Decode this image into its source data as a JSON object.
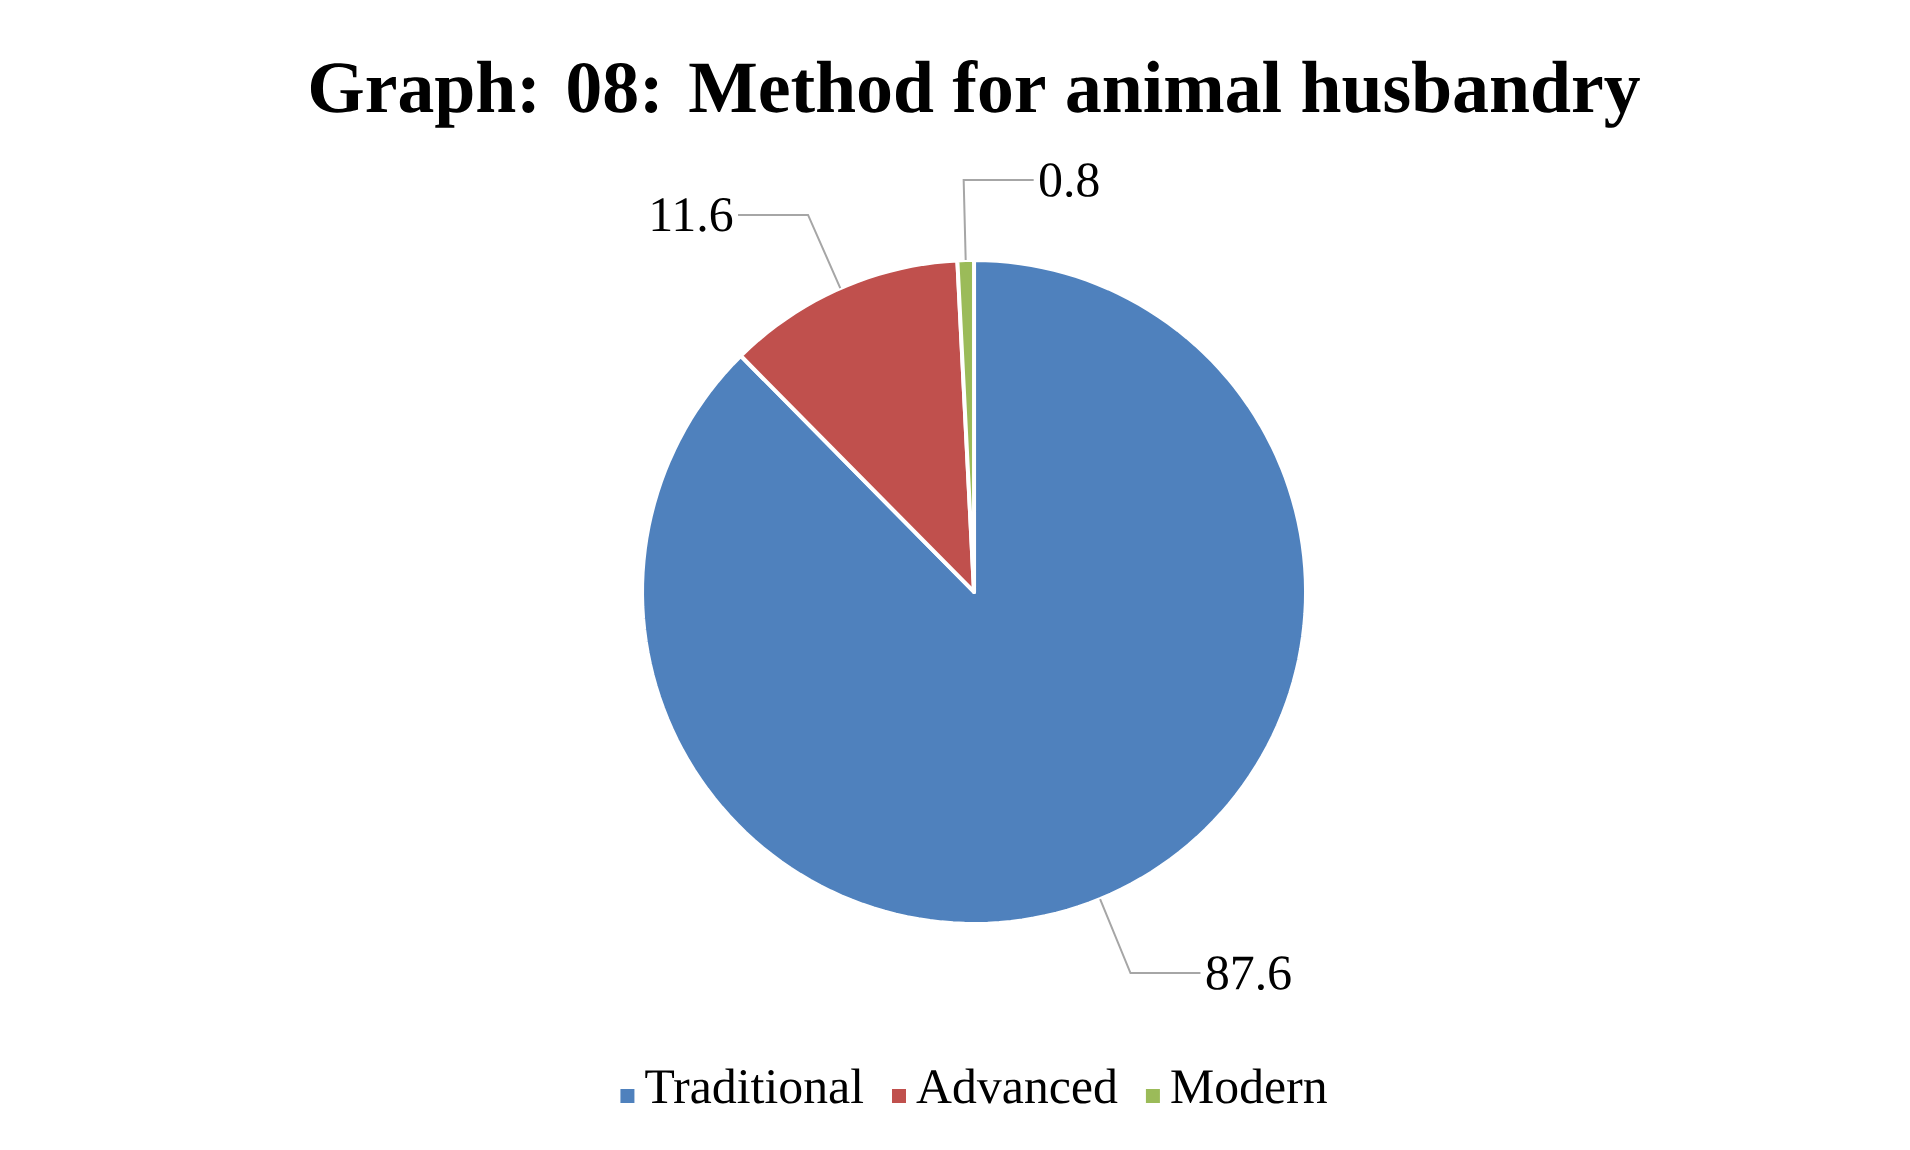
{
  "chart_data": {
    "type": "pie",
    "title": "Graph: 08: Method for animal husbandry",
    "categories": [
      "Traditional",
      "Advanced",
      "Modern"
    ],
    "values": [
      87.6,
      11.6,
      0.8
    ],
    "colors": [
      "#4f81bd",
      "#c0504d",
      "#9bbb59"
    ],
    "data_labels": true,
    "legend": "bottom"
  }
}
